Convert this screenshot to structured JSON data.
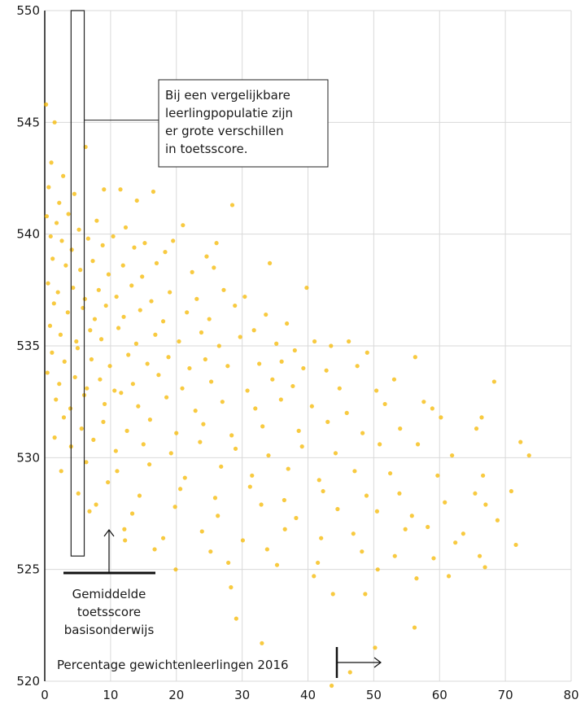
{
  "chart_data": {
    "type": "scatter",
    "title": "",
    "xlabel": "Percentage gewichtenleerlingen 2016",
    "ylabel": "",
    "xlim": [
      0,
      80
    ],
    "ylim": [
      520,
      550
    ],
    "x_ticks": [
      "0",
      "10",
      "20",
      "30",
      "40",
      "50",
      "60",
      "70",
      "80"
    ],
    "y_ticks": [
      "520",
      "525",
      "530",
      "535",
      "540",
      "545",
      "550"
    ],
    "grid": true,
    "colors": {
      "points_light": "#f5b800",
      "points_dense": "#e8501a"
    },
    "series": [
      {
        "points": [
          [
            0.2,
            545.8
          ],
          [
            1.5,
            545.0
          ],
          [
            6.2,
            543.9
          ],
          [
            1.0,
            543.2
          ],
          [
            2.8,
            542.6
          ],
          [
            0.6,
            542.1
          ],
          [
            2.2,
            541.4
          ],
          [
            4.5,
            541.8
          ],
          [
            9.0,
            542.0
          ],
          [
            11.5,
            542.0
          ],
          [
            16.5,
            541.9
          ],
          [
            14.0,
            541.5
          ],
          [
            0.3,
            540.8
          ],
          [
            1.8,
            540.5
          ],
          [
            3.6,
            540.9
          ],
          [
            5.2,
            540.2
          ],
          [
            7.9,
            540.6
          ],
          [
            12.3,
            540.3
          ],
          [
            21.0,
            540.4
          ],
          [
            28.5,
            541.3
          ],
          [
            0.9,
            539.9
          ],
          [
            2.6,
            539.7
          ],
          [
            4.1,
            539.3
          ],
          [
            6.6,
            539.8
          ],
          [
            8.8,
            539.5
          ],
          [
            10.4,
            539.9
          ],
          [
            13.6,
            539.4
          ],
          [
            15.2,
            539.6
          ],
          [
            18.3,
            539.2
          ],
          [
            19.5,
            539.7
          ],
          [
            24.6,
            539.0
          ],
          [
            26.1,
            539.6
          ],
          [
            1.2,
            538.9
          ],
          [
            3.2,
            538.6
          ],
          [
            5.4,
            538.4
          ],
          [
            7.3,
            538.8
          ],
          [
            9.7,
            538.2
          ],
          [
            11.9,
            538.6
          ],
          [
            14.8,
            538.1
          ],
          [
            17.0,
            538.7
          ],
          [
            22.4,
            538.3
          ],
          [
            25.7,
            538.5
          ],
          [
            34.2,
            538.7
          ],
          [
            0.5,
            537.8
          ],
          [
            2.0,
            537.4
          ],
          [
            4.3,
            537.6
          ],
          [
            6.1,
            537.1
          ],
          [
            8.2,
            537.5
          ],
          [
            10.9,
            537.2
          ],
          [
            13.2,
            537.7
          ],
          [
            16.2,
            537.0
          ],
          [
            19.0,
            537.4
          ],
          [
            23.1,
            537.1
          ],
          [
            27.2,
            537.5
          ],
          [
            30.4,
            537.2
          ],
          [
            39.8,
            537.6
          ],
          [
            1.4,
            536.9
          ],
          [
            3.5,
            536.5
          ],
          [
            5.8,
            536.7
          ],
          [
            7.6,
            536.2
          ],
          [
            9.3,
            536.8
          ],
          [
            12.0,
            536.3
          ],
          [
            14.5,
            536.6
          ],
          [
            18.0,
            536.1
          ],
          [
            21.6,
            536.5
          ],
          [
            25.0,
            536.2
          ],
          [
            28.9,
            536.8
          ],
          [
            33.6,
            536.4
          ],
          [
            36.8,
            536.0
          ],
          [
            0.8,
            535.9
          ],
          [
            2.4,
            535.5
          ],
          [
            4.8,
            535.2
          ],
          [
            6.9,
            535.7
          ],
          [
            8.6,
            535.3
          ],
          [
            11.2,
            535.8
          ],
          [
            13.9,
            535.1
          ],
          [
            16.8,
            535.5
          ],
          [
            20.4,
            535.2
          ],
          [
            23.8,
            535.6
          ],
          [
            26.5,
            535.0
          ],
          [
            29.7,
            535.4
          ],
          [
            31.8,
            535.7
          ],
          [
            35.2,
            535.1
          ],
          [
            38.0,
            534.8
          ],
          [
            41.0,
            535.2
          ],
          [
            43.5,
            535.0
          ],
          [
            46.2,
            535.2
          ],
          [
            49.0,
            534.7
          ],
          [
            56.3,
            534.5
          ],
          [
            1.1,
            534.7
          ],
          [
            3.0,
            534.3
          ],
          [
            5.0,
            534.9
          ],
          [
            7.1,
            534.4
          ],
          [
            9.9,
            534.1
          ],
          [
            12.7,
            534.6
          ],
          [
            15.6,
            534.2
          ],
          [
            18.8,
            534.5
          ],
          [
            22.0,
            534.0
          ],
          [
            24.4,
            534.4
          ],
          [
            27.8,
            534.1
          ],
          [
            32.6,
            534.2
          ],
          [
            36.0,
            534.3
          ],
          [
            39.3,
            534.0
          ],
          [
            42.8,
            533.9
          ],
          [
            47.5,
            534.1
          ],
          [
            0.4,
            533.8
          ],
          [
            2.2,
            533.3
          ],
          [
            4.6,
            533.6
          ],
          [
            6.4,
            533.1
          ],
          [
            8.4,
            533.5
          ],
          [
            10.6,
            533.0
          ],
          [
            13.4,
            533.3
          ],
          [
            17.3,
            533.7
          ],
          [
            20.9,
            533.1
          ],
          [
            25.3,
            533.4
          ],
          [
            30.8,
            533.0
          ],
          [
            34.6,
            533.5
          ],
          [
            37.7,
            533.2
          ],
          [
            44.8,
            533.1
          ],
          [
            50.4,
            533.0
          ],
          [
            53.1,
            533.5
          ],
          [
            68.3,
            533.4
          ],
          [
            1.7,
            532.6
          ],
          [
            3.9,
            532.2
          ],
          [
            6.0,
            532.8
          ],
          [
            9.1,
            532.4
          ],
          [
            11.6,
            532.9
          ],
          [
            14.2,
            532.3
          ],
          [
            18.5,
            532.7
          ],
          [
            22.9,
            532.1
          ],
          [
            27.0,
            532.5
          ],
          [
            32.0,
            532.2
          ],
          [
            35.9,
            532.6
          ],
          [
            40.6,
            532.3
          ],
          [
            45.9,
            532.0
          ],
          [
            51.7,
            532.4
          ],
          [
            57.6,
            532.5
          ],
          [
            58.9,
            532.2
          ],
          [
            2.9,
            531.8
          ],
          [
            5.6,
            531.3
          ],
          [
            8.9,
            531.6
          ],
          [
            12.5,
            531.2
          ],
          [
            16.0,
            531.7
          ],
          [
            20.0,
            531.1
          ],
          [
            24.1,
            531.5
          ],
          [
            28.4,
            531.0
          ],
          [
            33.1,
            531.4
          ],
          [
            38.6,
            531.2
          ],
          [
            43.0,
            531.6
          ],
          [
            48.3,
            531.1
          ],
          [
            54.0,
            531.3
          ],
          [
            60.2,
            531.8
          ],
          [
            66.4,
            531.8
          ],
          [
            65.6,
            531.3
          ],
          [
            1.5,
            530.9
          ],
          [
            4.0,
            530.5
          ],
          [
            7.4,
            530.8
          ],
          [
            10.8,
            530.3
          ],
          [
            15.0,
            530.6
          ],
          [
            19.2,
            530.2
          ],
          [
            23.6,
            530.7
          ],
          [
            29.0,
            530.4
          ],
          [
            34.0,
            530.1
          ],
          [
            39.1,
            530.5
          ],
          [
            44.2,
            530.2
          ],
          [
            50.9,
            530.6
          ],
          [
            56.7,
            530.6
          ],
          [
            61.9,
            530.1
          ],
          [
            72.3,
            530.7
          ],
          [
            73.6,
            530.1
          ],
          [
            2.5,
            529.4
          ],
          [
            6.3,
            529.8
          ],
          [
            11.0,
            529.4
          ],
          [
            15.9,
            529.7
          ],
          [
            21.3,
            529.1
          ],
          [
            26.8,
            529.6
          ],
          [
            31.5,
            529.2
          ],
          [
            37.0,
            529.5
          ],
          [
            41.7,
            529.0
          ],
          [
            47.1,
            529.4
          ],
          [
            52.5,
            529.3
          ],
          [
            59.7,
            529.2
          ],
          [
            66.6,
            529.2
          ],
          [
            5.1,
            528.4
          ],
          [
            9.6,
            528.9
          ],
          [
            14.4,
            528.3
          ],
          [
            20.6,
            528.6
          ],
          [
            25.9,
            528.2
          ],
          [
            31.2,
            528.7
          ],
          [
            36.4,
            528.1
          ],
          [
            42.3,
            528.5
          ],
          [
            48.9,
            528.3
          ],
          [
            53.9,
            528.4
          ],
          [
            60.8,
            528.0
          ],
          [
            65.4,
            528.4
          ],
          [
            70.9,
            528.5
          ],
          [
            7.8,
            527.9
          ],
          [
            13.3,
            527.5
          ],
          [
            19.8,
            527.8
          ],
          [
            26.3,
            527.4
          ],
          [
            32.9,
            527.9
          ],
          [
            38.2,
            527.3
          ],
          [
            44.5,
            527.7
          ],
          [
            50.5,
            527.6
          ],
          [
            55.8,
            527.4
          ],
          [
            67.0,
            527.9
          ],
          [
            68.8,
            527.2
          ],
          [
            6.8,
            527.6
          ],
          [
            12.1,
            526.8
          ],
          [
            18.0,
            526.4
          ],
          [
            23.9,
            526.7
          ],
          [
            30.1,
            526.3
          ],
          [
            36.5,
            526.8
          ],
          [
            42.0,
            526.4
          ],
          [
            46.9,
            526.6
          ],
          [
            54.8,
            526.8
          ],
          [
            58.2,
            526.9
          ],
          [
            63.6,
            526.6
          ],
          [
            62.4,
            526.2
          ],
          [
            12.2,
            526.3
          ],
          [
            16.7,
            525.9
          ],
          [
            25.2,
            525.8
          ],
          [
            33.8,
            525.9
          ],
          [
            41.5,
            525.3
          ],
          [
            48.2,
            525.8
          ],
          [
            53.2,
            525.6
          ],
          [
            59.1,
            525.5
          ],
          [
            66.1,
            525.6
          ],
          [
            71.6,
            526.1
          ],
          [
            19.9,
            525.0
          ],
          [
            27.9,
            525.3
          ],
          [
            35.3,
            525.2
          ],
          [
            40.9,
            524.7
          ],
          [
            50.6,
            525.0
          ],
          [
            56.5,
            524.6
          ],
          [
            61.4,
            524.7
          ],
          [
            66.9,
            525.1
          ],
          [
            28.3,
            524.2
          ],
          [
            43.8,
            523.9
          ],
          [
            48.7,
            523.9
          ],
          [
            29.1,
            522.8
          ],
          [
            33.0,
            521.7
          ],
          [
            56.2,
            522.4
          ],
          [
            50.2,
            521.5
          ],
          [
            43.6,
            519.8
          ],
          [
            46.4,
            520.4
          ]
        ]
      }
    ],
    "annotations": {
      "box_text": [
        "Bij een vergelijkbare",
        "leerlingpopulatie zijn",
        "er grote verschillen",
        "in toetsscore."
      ],
      "mean_label": [
        "Gemiddelde",
        "toetsscore",
        "basisonderwijs"
      ],
      "x_axis_label": "Percentage gewichtenleerlingen 2016"
    }
  }
}
